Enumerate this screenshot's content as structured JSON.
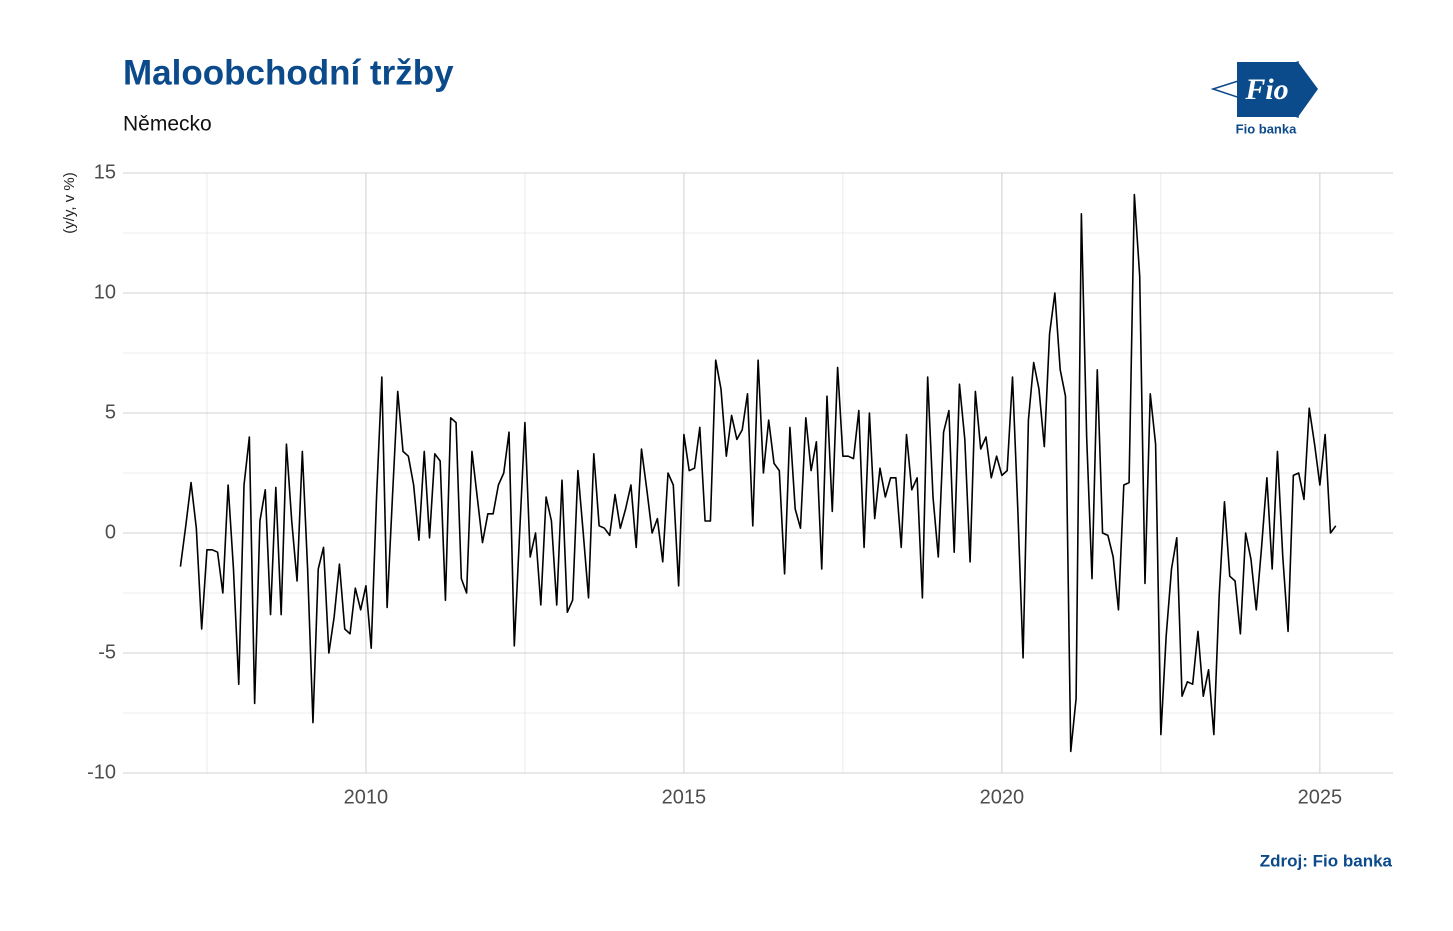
{
  "chart_data": {
    "type": "line",
    "title": "Maloobchodní tržby",
    "subtitle": "Německo",
    "y_label": "(y/y, v %)",
    "source": "Zdroj: Fio banka",
    "logo_text": "Fio",
    "logo_caption": "Fio banka",
    "color": "#000000",
    "grid": true,
    "xlim": [
      2006.18,
      2026.15
    ],
    "ylim": [
      -10,
      15
    ],
    "xticks": [
      2010,
      2015,
      2020,
      2025
    ],
    "yticks": [
      -10,
      -5,
      0,
      5,
      10,
      15
    ],
    "x_minor_grid": [
      2007.5,
      2012.5,
      2017.5,
      2022.5
    ],
    "y_minor_grid": [
      -7.5,
      -2.5,
      2.5,
      7.5,
      12.5
    ],
    "x": [
      2007.083,
      2007.167,
      2007.25,
      2007.333,
      2007.417,
      2007.5,
      2007.583,
      2007.667,
      2007.75,
      2007.833,
      2007.917,
      2008,
      2008.083,
      2008.167,
      2008.25,
      2008.333,
      2008.417,
      2008.5,
      2008.583,
      2008.667,
      2008.75,
      2008.833,
      2008.917,
      2009,
      2009.083,
      2009.167,
      2009.25,
      2009.333,
      2009.417,
      2009.5,
      2009.583,
      2009.667,
      2009.75,
      2009.833,
      2009.917,
      2010,
      2010.083,
      2010.167,
      2010.25,
      2010.333,
      2010.417,
      2010.5,
      2010.583,
      2010.667,
      2010.75,
      2010.833,
      2010.917,
      2011,
      2011.083,
      2011.167,
      2011.25,
      2011.333,
      2011.417,
      2011.5,
      2011.583,
      2011.667,
      2011.75,
      2011.833,
      2011.917,
      2012,
      2012.083,
      2012.167,
      2012.25,
      2012.333,
      2012.417,
      2012.5,
      2012.583,
      2012.667,
      2012.75,
      2012.833,
      2012.917,
      2013,
      2013.083,
      2013.167,
      2013.25,
      2013.333,
      2013.417,
      2013.5,
      2013.583,
      2013.667,
      2013.75,
      2013.833,
      2013.917,
      2014,
      2014.083,
      2014.167,
      2014.25,
      2014.333,
      2014.417,
      2014.5,
      2014.583,
      2014.667,
      2014.75,
      2014.833,
      2014.917,
      2015,
      2015.083,
      2015.167,
      2015.25,
      2015.333,
      2015.417,
      2015.5,
      2015.583,
      2015.667,
      2015.75,
      2015.833,
      2015.917,
      2016,
      2016.083,
      2016.167,
      2016.25,
      2016.333,
      2016.417,
      2016.5,
      2016.583,
      2016.667,
      2016.75,
      2016.833,
      2016.917,
      2017,
      2017.083,
      2017.167,
      2017.25,
      2017.333,
      2017.417,
      2017.5,
      2017.583,
      2017.667,
      2017.75,
      2017.833,
      2017.917,
      2018,
      2018.083,
      2018.167,
      2018.25,
      2018.333,
      2018.417,
      2018.5,
      2018.583,
      2018.667,
      2018.75,
      2018.833,
      2018.917,
      2019,
      2019.083,
      2019.167,
      2019.25,
      2019.333,
      2019.417,
      2019.5,
      2019.583,
      2019.667,
      2019.75,
      2019.833,
      2019.917,
      2020,
      2020.083,
      2020.167,
      2020.25,
      2020.333,
      2020.417,
      2020.5,
      2020.583,
      2020.667,
      2020.75,
      2020.833,
      2020.917,
      2021,
      2021.083,
      2021.167,
      2021.25,
      2021.333,
      2021.417,
      2021.5,
      2021.583,
      2021.667,
      2021.75,
      2021.833,
      2021.917,
      2022,
      2022.083,
      2022.167,
      2022.25,
      2022.333,
      2022.417,
      2022.5,
      2022.583,
      2022.667,
      2022.75,
      2022.833,
      2022.917,
      2023,
      2023.083,
      2023.167,
      2023.25,
      2023.333,
      2023.417,
      2023.5,
      2023.583,
      2023.667,
      2023.75,
      2023.833,
      2023.917,
      2024,
      2024.083,
      2024.167,
      2024.25,
      2024.333,
      2024.417,
      2024.5,
      2024.583,
      2024.667,
      2024.75,
      2024.833,
      2024.917,
      2025,
      2025.083,
      2025.167,
      2025.25
    ],
    "values": [
      -1.4,
      0.3,
      2.1,
      0.2,
      -4.0,
      -0.7,
      -0.7,
      -0.8,
      -2.5,
      2.0,
      -1.5,
      -6.3,
      2.0,
      4.0,
      -7.1,
      0.5,
      1.8,
      -3.4,
      1.9,
      -3.4,
      3.7,
      0.5,
      -2.0,
      3.4,
      -1.5,
      -7.9,
      -1.5,
      -0.6,
      -5.0,
      -3.5,
      -1.3,
      -4.0,
      -4.2,
      -2.3,
      -3.2,
      -2.2,
      -4.8,
      1.5,
      6.5,
      -3.1,
      1.5,
      5.9,
      3.4,
      3.2,
      2.0,
      -0.3,
      3.4,
      -0.2,
      3.3,
      3.0,
      -2.8,
      4.8,
      4.6,
      -1.9,
      -2.5,
      3.4,
      1.5,
      -0.4,
      0.8,
      0.8,
      2.0,
      2.5,
      4.2,
      -4.7,
      0.0,
      4.6,
      -1.0,
      0.0,
      -3.0,
      1.5,
      0.5,
      -3.0,
      2.2,
      -3.3,
      -2.8,
      2.6,
      0.0,
      -2.7,
      3.3,
      0.3,
      0.2,
      -0.1,
      1.6,
      0.2,
      1.0,
      2.0,
      -0.6,
      3.5,
      1.8,
      0.0,
      0.6,
      -1.2,
      2.5,
      2.0,
      -2.2,
      4.1,
      2.6,
      2.7,
      4.4,
      0.5,
      0.5,
      7.2,
      6.0,
      3.2,
      4.9,
      3.9,
      4.3,
      5.8,
      0.3,
      7.2,
      2.5,
      4.7,
      2.9,
      2.6,
      -1.7,
      4.4,
      1.0,
      0.2,
      4.8,
      2.6,
      3.8,
      -1.5,
      5.7,
      0.9,
      6.9,
      3.2,
      3.2,
      3.1,
      5.1,
      -0.6,
      5.0,
      0.6,
      2.7,
      1.5,
      2.3,
      2.3,
      -0.6,
      4.1,
      1.8,
      2.3,
      -2.7,
      6.5,
      1.5,
      -1.0,
      4.2,
      5.1,
      -0.8,
      6.2,
      3.9,
      -1.2,
      5.9,
      3.5,
      4.0,
      2.3,
      3.2,
      2.4,
      2.6,
      6.5,
      1.0,
      -5.2,
      4.7,
      7.1,
      6.0,
      3.6,
      8.3,
      10.0,
      6.8,
      5.7,
      -9.1,
      -6.9,
      13.3,
      4.0,
      -1.9,
      6.8,
      0.0,
      -0.1,
      -1.0,
      -3.2,
      2.0,
      2.1,
      14.1,
      10.7,
      -2.1,
      5.8,
      3.7,
      -8.4,
      -4.3,
      -1.5,
      -0.2,
      -6.8,
      -6.2,
      -6.3,
      -4.1,
      -6.8,
      -5.7,
      -8.4,
      -2.6,
      1.3,
      -1.8,
      -2.0,
      -4.2,
      0.0,
      -1.1,
      -3.2,
      -0.6,
      2.3,
      -1.5,
      3.4,
      -1.0,
      -4.1,
      2.4,
      2.5,
      1.4,
      5.2,
      3.7,
      2.0,
      4.1,
      0.0,
      0.3
    ]
  }
}
